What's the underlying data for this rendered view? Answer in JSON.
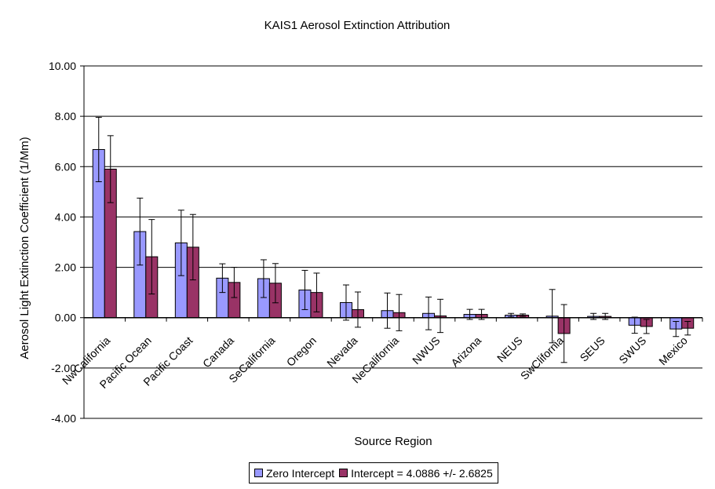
{
  "chart_data": {
    "type": "bar",
    "title": "KAIS1 Aerosol Extinction Attribution",
    "xlabel": "Source Region",
    "ylabel": "Aerosol Light Extinction Coefficient (1/Mm)",
    "ylim": [
      -4,
      10
    ],
    "ytick_labels": [
      "10.00",
      "8.00",
      "6.00",
      "4.00",
      "2.00",
      "0.00",
      "-2.00",
      "-4.00"
    ],
    "grid": true,
    "legend_position": "bottom",
    "categories": [
      "NwCalifornia",
      "Pacific Ocean",
      "Pacific Coast",
      "Canada",
      "SeCalifornia",
      "Oregon",
      "Nevada",
      "NeCalifornia",
      "NWUS",
      "Arizona",
      "NEUS",
      "SwClifornia",
      "SEUS",
      "SWUS",
      "Mexico"
    ],
    "series": [
      {
        "name": "Zero Intercept",
        "color": "#9999ff",
        "values": [
          6.68,
          3.42,
          2.97,
          1.57,
          1.55,
          1.1,
          0.6,
          0.28,
          0.17,
          0.13,
          0.1,
          0.06,
          0.05,
          -0.3,
          -0.45
        ],
        "error": [
          1.28,
          1.33,
          1.3,
          0.57,
          0.75,
          0.78,
          0.7,
          0.7,
          0.65,
          0.2,
          0.07,
          1.06,
          0.12,
          0.32,
          0.3
        ]
      },
      {
        "name": "Intercept = 4.0886 +/- 2.6825",
        "color": "#993366",
        "values": [
          5.9,
          2.42,
          2.8,
          1.4,
          1.37,
          1.0,
          0.32,
          0.2,
          0.07,
          0.13,
          0.1,
          -0.63,
          0.05,
          -0.35,
          -0.42
        ],
        "error": [
          1.33,
          1.48,
          1.3,
          0.6,
          0.78,
          0.77,
          0.7,
          0.72,
          0.66,
          0.2,
          0.05,
          1.15,
          0.12,
          0.28,
          0.27
        ]
      }
    ]
  }
}
